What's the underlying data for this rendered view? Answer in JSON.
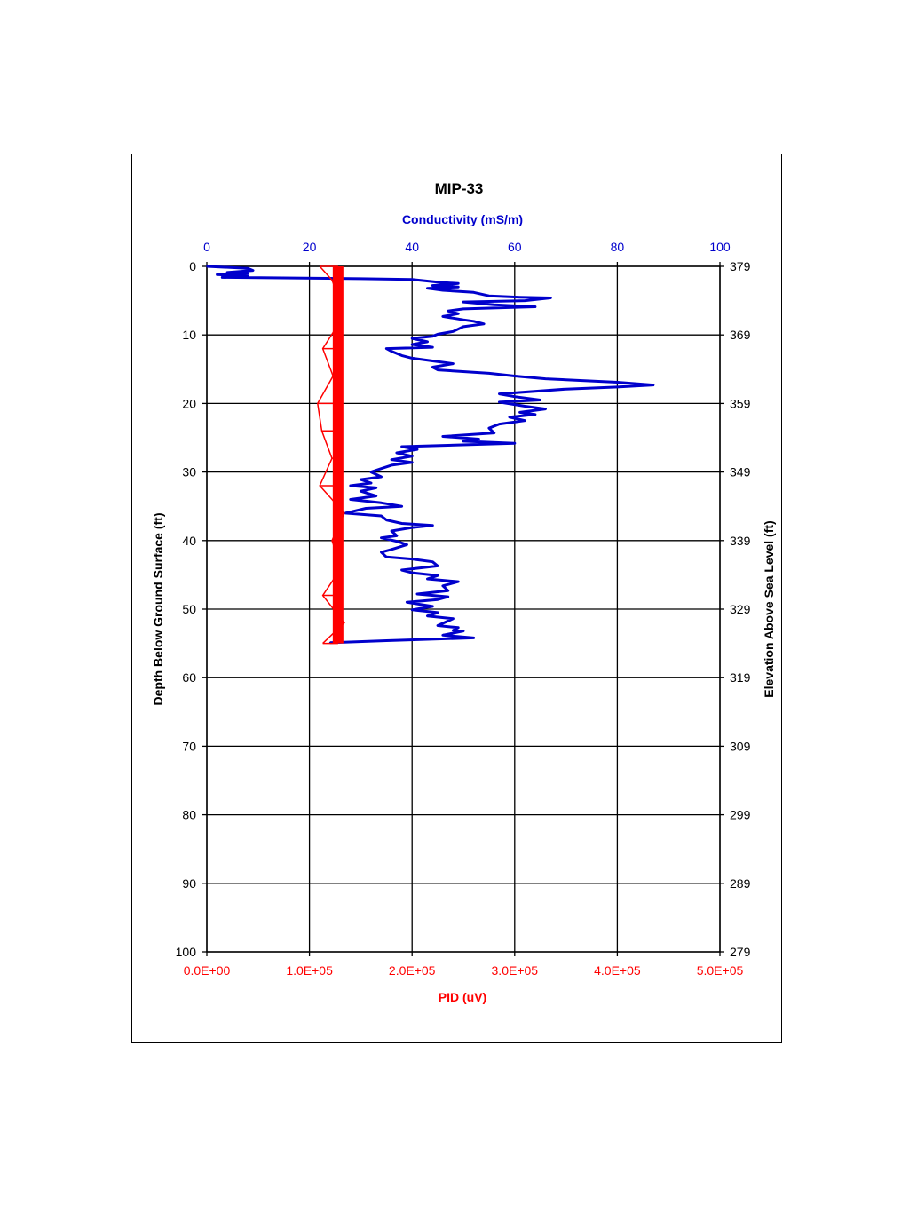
{
  "chart_data": {
    "type": "line",
    "title": "MIP-33",
    "y_left_label": "Depth Below Ground Surface (ft)",
    "y_right_label": "Elevation Above Sea Level (ft)",
    "x_top_label": "Conductivity (mS/m)",
    "x_bottom_label": "PID (uV)",
    "ylim": [
      0,
      100
    ],
    "y_left_ticks": [
      "0",
      "10",
      "20",
      "30",
      "40",
      "50",
      "60",
      "70",
      "80",
      "90",
      "100"
    ],
    "y_right_ticks": [
      "379",
      "369",
      "359",
      "349",
      "339",
      "329",
      "319",
      "309",
      "299",
      "289",
      "279"
    ],
    "x_top_lim": [
      0,
      100
    ],
    "x_top_ticks": [
      "0",
      "20",
      "40",
      "60",
      "80",
      "100"
    ],
    "x_bottom_lim": [
      0,
      500000
    ],
    "x_bottom_ticks": [
      "0.0E+00",
      "1.0E+05",
      "2.0E+05",
      "3.0E+05",
      "4.0E+05",
      "5.0E+05"
    ],
    "grid": true,
    "colors": {
      "conductivity": "#0000cc",
      "pid": "#ff0000",
      "axes": "#000000"
    },
    "series": [
      {
        "axis": "top",
        "points": [
          [
            0,
            0
          ],
          [
            8,
            0.3
          ],
          [
            9,
            0.6
          ],
          [
            4,
            0.9
          ],
          [
            8,
            1
          ],
          [
            2,
            1.2
          ],
          [
            8,
            1.4
          ],
          [
            3,
            1.6
          ],
          [
            30,
            1.8
          ],
          [
            40,
            1.9
          ],
          [
            45,
            2.3
          ],
          [
            49,
            2.5
          ],
          [
            44,
            2.8
          ],
          [
            49,
            3
          ],
          [
            43,
            3.2
          ],
          [
            46,
            3.5
          ],
          [
            52,
            3.8
          ],
          [
            55,
            4.3
          ],
          [
            61,
            4.5
          ],
          [
            67,
            4.6
          ],
          [
            62,
            5
          ],
          [
            50,
            5.2
          ],
          [
            56,
            5.6
          ],
          [
            64,
            5.9
          ],
          [
            50,
            6.2
          ],
          [
            47,
            6.5
          ],
          [
            49,
            6.9
          ],
          [
            46,
            7.3
          ],
          [
            50,
            7.8
          ],
          [
            52,
            8
          ],
          [
            54,
            8.4
          ],
          [
            50,
            8.8
          ],
          [
            48,
            9.5
          ],
          [
            45,
            9.9
          ],
          [
            44,
            10.2
          ],
          [
            40,
            10.5
          ],
          [
            43,
            11
          ],
          [
            40,
            11.4
          ],
          [
            44,
            11.8
          ],
          [
            35,
            12
          ],
          [
            36,
            12.4
          ],
          [
            38,
            13
          ],
          [
            40,
            13.4
          ],
          [
            44,
            13.8
          ],
          [
            48,
            14.2
          ],
          [
            44,
            14.7
          ],
          [
            45,
            15.1
          ],
          [
            55,
            15.6
          ],
          [
            60,
            16
          ],
          [
            66,
            16.4
          ],
          [
            80,
            16.9
          ],
          [
            87,
            17.3
          ],
          [
            80,
            17.6
          ],
          [
            70,
            17.9
          ],
          [
            57,
            18.6
          ],
          [
            60,
            19
          ],
          [
            65,
            19.5
          ],
          [
            57,
            19.8
          ],
          [
            62,
            20.4
          ],
          [
            66,
            20.8
          ],
          [
            61,
            21.3
          ],
          [
            64,
            21.6
          ],
          [
            59,
            22
          ],
          [
            62,
            22.5
          ],
          [
            57,
            23
          ],
          [
            55,
            23.6
          ],
          [
            56,
            24.3
          ],
          [
            46,
            24.8
          ],
          [
            53,
            25.2
          ],
          [
            50,
            25.5
          ],
          [
            60,
            25.8
          ],
          [
            38,
            26.3
          ],
          [
            41,
            26.7
          ],
          [
            37,
            27.2
          ],
          [
            40,
            27.7
          ],
          [
            36,
            28.2
          ],
          [
            40,
            28.6
          ],
          [
            36,
            29
          ],
          [
            34,
            29.5
          ],
          [
            32,
            30
          ],
          [
            34,
            30.7
          ],
          [
            30,
            31.1
          ],
          [
            32,
            31.6
          ],
          [
            28,
            32
          ],
          [
            33,
            32.3
          ],
          [
            30,
            32.8
          ],
          [
            33,
            33.5
          ],
          [
            28,
            34
          ],
          [
            34,
            34.5
          ],
          [
            38,
            35
          ],
          [
            31,
            35.3
          ],
          [
            27,
            36
          ],
          [
            34,
            36.4
          ],
          [
            35,
            37
          ],
          [
            38,
            37.5
          ],
          [
            44,
            37.8
          ],
          [
            40,
            38.1
          ],
          [
            36,
            38.6
          ],
          [
            37,
            39.3
          ],
          [
            34,
            39.6
          ],
          [
            37,
            40.1
          ],
          [
            39,
            40.6
          ],
          [
            36,
            41.3
          ],
          [
            34,
            41.7
          ],
          [
            35,
            42.4
          ],
          [
            40,
            42.7
          ],
          [
            44,
            43.1
          ],
          [
            45,
            43.7
          ],
          [
            38,
            44.3
          ],
          [
            40,
            44.7
          ],
          [
            45,
            45.1
          ],
          [
            43,
            45.6
          ],
          [
            49,
            46
          ],
          [
            46,
            46.6
          ],
          [
            47,
            47.3
          ],
          [
            41,
            47.8
          ],
          [
            47,
            48.2
          ],
          [
            45,
            48.6
          ],
          [
            39,
            49
          ],
          [
            44,
            49.6
          ],
          [
            40,
            50.1
          ],
          [
            45,
            50.5
          ],
          [
            43,
            51
          ],
          [
            48,
            51.4
          ],
          [
            45,
            52.4
          ],
          [
            49,
            52.7
          ],
          [
            48,
            53.1
          ],
          [
            50,
            53.2
          ],
          [
            46,
            53.8
          ],
          [
            52,
            54.2
          ],
          [
            35,
            54.6
          ],
          [
            24,
            54.9
          ]
        ]
      },
      {
        "axis": "bottom",
        "points": [
          [
            110000,
            0
          ],
          [
            122000,
            2
          ],
          [
            127000,
            4
          ],
          [
            124000,
            6
          ],
          [
            130000,
            8
          ],
          [
            113000,
            12
          ],
          [
            123000,
            16
          ],
          [
            108000,
            20
          ],
          [
            112000,
            24
          ],
          [
            122000,
            28
          ],
          [
            110000,
            32
          ],
          [
            134000,
            36
          ],
          [
            122000,
            40
          ],
          [
            131000,
            44
          ],
          [
            113000,
            48
          ],
          [
            134000,
            52
          ],
          [
            113000,
            55
          ]
        ]
      }
    ]
  }
}
